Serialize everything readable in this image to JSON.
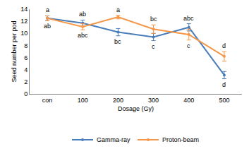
{
  "chart_data": {
    "type": "line",
    "x_label": "Dosage (Gy)",
    "y_label": "Seed number per pod",
    "categories": [
      "con",
      "100",
      "200",
      "300",
      "400",
      "500"
    ],
    "series": [
      {
        "name": "Gamma-ray",
        "color": "#4a7ebb",
        "marker": "circle",
        "values": [
          12.5,
          11.7,
          10.2,
          9.4,
          11.0,
          3.1
        ],
        "error": [
          0.4,
          0.5,
          0.6,
          0.6,
          0.6,
          0.6
        ],
        "annotations": [
          "a",
          "ab",
          "bc",
          "c",
          "abc",
          "d"
        ]
      },
      {
        "name": "Proton-beam",
        "color": "#f79646",
        "marker": "circle",
        "values": [
          12.5,
          11.1,
          12.7,
          10.7,
          9.8,
          6.2
        ],
        "error": [
          0.4,
          0.5,
          0.3,
          0.7,
          0.9,
          0.8
        ],
        "annotations": [
          "ab",
          "abc",
          "a",
          "bc",
          "c",
          "d"
        ]
      }
    ],
    "ylim": [
      0,
      14
    ],
    "yticks": [
      0,
      2,
      4,
      6,
      8,
      10,
      12,
      14
    ],
    "grid": false,
    "legend": "bottom"
  }
}
